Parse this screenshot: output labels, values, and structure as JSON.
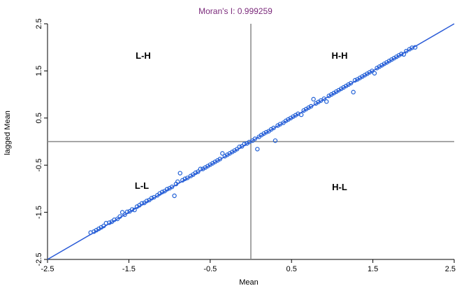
{
  "chart_data": {
    "type": "scatter",
    "title": "Moran's I: 0.999259",
    "xlabel": "Mean",
    "ylabel": "lagged Mean",
    "xlim": [
      -2.5,
      2.5
    ],
    "ylim": [
      -2.5,
      2.5
    ],
    "x_ticks": [
      "-2.5",
      "-1.5",
      "-0.5",
      "0.5",
      "1.5",
      "2.5"
    ],
    "y_ticks": [
      "-2.5",
      "-1.5",
      "-0.5",
      "0.5",
      "1.5",
      "2.5"
    ],
    "quadrant_labels": {
      "top_left": "L-H",
      "top_right": "H-H",
      "bottom_left": "L-L",
      "bottom_right": "H-L"
    },
    "reference_lines": {
      "x_mean": 0.0,
      "y_mean": 0.0
    },
    "regression_line": {
      "slope": 1.0,
      "intercept": 0.0
    },
    "colors": {
      "points": "#1f5fd6",
      "line": "#2a5bd7",
      "title": "#7b2a7b",
      "reference": "#888888"
    },
    "points": [
      [
        -1.97,
        -1.93
      ],
      [
        -1.93,
        -1.91
      ],
      [
        -1.9,
        -1.88
      ],
      [
        -1.87,
        -1.85
      ],
      [
        -1.84,
        -1.82
      ],
      [
        -1.81,
        -1.79
      ],
      [
        -1.78,
        -1.73
      ],
      [
        -1.74,
        -1.72
      ],
      [
        -1.71,
        -1.7
      ],
      [
        -1.68,
        -1.66
      ],
      [
        -1.64,
        -1.64
      ],
      [
        -1.61,
        -1.59
      ],
      [
        -1.58,
        -1.5
      ],
      [
        -1.55,
        -1.55
      ],
      [
        -1.52,
        -1.49
      ],
      [
        -1.49,
        -1.48
      ],
      [
        -1.46,
        -1.44
      ],
      [
        -1.43,
        -1.45
      ],
      [
        -1.4,
        -1.38
      ],
      [
        -1.37,
        -1.35
      ],
      [
        -1.34,
        -1.31
      ],
      [
        -1.31,
        -1.3
      ],
      [
        -1.28,
        -1.26
      ],
      [
        -1.25,
        -1.24
      ],
      [
        -1.22,
        -1.2
      ],
      [
        -1.19,
        -1.18
      ],
      [
        -1.15,
        -1.14
      ],
      [
        -1.12,
        -1.1
      ],
      [
        -1.09,
        -1.07
      ],
      [
        -1.06,
        -1.05
      ],
      [
        -1.03,
        -1.01
      ],
      [
        -1.0,
        -0.99
      ],
      [
        -0.97,
        -0.96
      ],
      [
        -0.94,
        -1.15
      ],
      [
        -0.92,
        -0.9
      ],
      [
        -0.9,
        -0.85
      ],
      [
        -0.87,
        -0.67
      ],
      [
        -0.84,
        -0.82
      ],
      [
        -0.81,
        -0.79
      ],
      [
        -0.78,
        -0.77
      ],
      [
        -0.74,
        -0.73
      ],
      [
        -0.71,
        -0.7
      ],
      [
        -0.68,
        -0.66
      ],
      [
        -0.65,
        -0.64
      ],
      [
        -0.62,
        -0.58
      ],
      [
        -0.59,
        -0.58
      ],
      [
        -0.56,
        -0.55
      ],
      [
        -0.53,
        -0.52
      ],
      [
        -0.5,
        -0.49
      ],
      [
        -0.47,
        -0.46
      ],
      [
        -0.44,
        -0.43
      ],
      [
        -0.41,
        -0.4
      ],
      [
        -0.38,
        -0.37
      ],
      [
        -0.35,
        -0.25
      ],
      [
        -0.32,
        -0.31
      ],
      [
        -0.29,
        -0.28
      ],
      [
        -0.26,
        -0.25
      ],
      [
        -0.23,
        -0.22
      ],
      [
        -0.2,
        -0.19
      ],
      [
        -0.17,
        -0.16
      ],
      [
        -0.14,
        -0.11
      ],
      [
        -0.11,
        -0.1
      ],
      [
        -0.08,
        -0.05
      ],
      [
        -0.05,
        -0.04
      ],
      [
        -0.02,
        -0.01
      ],
      [
        0.02,
        0.02
      ],
      [
        0.05,
        0.06
      ],
      [
        0.08,
        -0.16
      ],
      [
        0.1,
        0.1
      ],
      [
        0.13,
        0.14
      ],
      [
        0.16,
        0.17
      ],
      [
        0.19,
        0.2
      ],
      [
        0.22,
        0.22
      ],
      [
        0.25,
        0.26
      ],
      [
        0.28,
        0.29
      ],
      [
        0.3,
        0.02
      ],
      [
        0.33,
        0.34
      ],
      [
        0.36,
        0.37
      ],
      [
        0.4,
        0.4
      ],
      [
        0.43,
        0.44
      ],
      [
        0.46,
        0.47
      ],
      [
        0.49,
        0.5
      ],
      [
        0.52,
        0.53
      ],
      [
        0.55,
        0.56
      ],
      [
        0.58,
        0.59
      ],
      [
        0.62,
        0.57
      ],
      [
        0.65,
        0.66
      ],
      [
        0.68,
        0.69
      ],
      [
        0.71,
        0.72
      ],
      [
        0.74,
        0.75
      ],
      [
        0.77,
        0.9
      ],
      [
        0.8,
        0.81
      ],
      [
        0.83,
        0.84
      ],
      [
        0.86,
        0.87
      ],
      [
        0.9,
        0.91
      ],
      [
        0.93,
        0.85
      ],
      [
        0.96,
        0.97
      ],
      [
        0.99,
        1.0
      ],
      [
        1.02,
        1.03
      ],
      [
        1.05,
        1.06
      ],
      [
        1.08,
        1.09
      ],
      [
        1.11,
        1.12
      ],
      [
        1.14,
        1.15
      ],
      [
        1.17,
        1.18
      ],
      [
        1.2,
        1.21
      ],
      [
        1.23,
        1.24
      ],
      [
        1.26,
        1.05
      ],
      [
        1.28,
        1.3
      ],
      [
        1.31,
        1.32
      ],
      [
        1.34,
        1.35
      ],
      [
        1.37,
        1.38
      ],
      [
        1.4,
        1.41
      ],
      [
        1.43,
        1.44
      ],
      [
        1.46,
        1.47
      ],
      [
        1.49,
        1.5
      ],
      [
        1.52,
        1.45
      ],
      [
        1.55,
        1.56
      ],
      [
        1.58,
        1.59
      ],
      [
        1.61,
        1.62
      ],
      [
        1.64,
        1.65
      ],
      [
        1.67,
        1.68
      ],
      [
        1.7,
        1.71
      ],
      [
        1.73,
        1.74
      ],
      [
        1.76,
        1.77
      ],
      [
        1.79,
        1.8
      ],
      [
        1.82,
        1.83
      ],
      [
        1.85,
        1.86
      ],
      [
        1.88,
        1.85
      ],
      [
        1.91,
        1.92
      ],
      [
        1.95,
        1.96
      ],
      [
        1.98,
        1.99
      ],
      [
        2.02,
        2.0
      ]
    ]
  }
}
